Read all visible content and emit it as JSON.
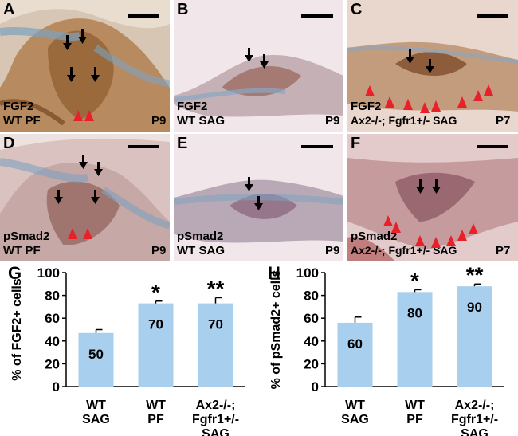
{
  "figure": {
    "panels": [
      {
        "id": "A",
        "stain": "FGF2",
        "genotype": "WT PF",
        "age": "P9"
      },
      {
        "id": "B",
        "stain": "FGF2",
        "genotype": "WT SAG",
        "age": "P9"
      },
      {
        "id": "C",
        "stain": "FGF2",
        "genotype": "Ax2-/-; Fgfr1+/- SAG",
        "age": "P7"
      },
      {
        "id": "D",
        "stain": "pSmad2",
        "genotype": "WT PF",
        "age": "P9"
      },
      {
        "id": "E",
        "stain": "pSmad2",
        "genotype": "WT SAG",
        "age": "P9"
      },
      {
        "id": "F",
        "stain": "pSmad2",
        "genotype": "Ax2-/-; Fgfr1+/- SAG",
        "age": "P7"
      }
    ],
    "colors": {
      "bar": "#a9cfee",
      "arrow_red": "#e8202a",
      "arrow_black": "#000000"
    }
  },
  "chart_data": [
    {
      "id": "G",
      "type": "bar",
      "ylabel": "% of FGF2+ cells",
      "ylim": [
        0,
        100
      ],
      "yticks": [
        0,
        20,
        40,
        60,
        80,
        100
      ],
      "categories": [
        [
          "WT",
          "SAG"
        ],
        [
          "WT",
          "PF"
        ],
        [
          "Ax2-/-;",
          "Fgfr1+/-",
          "SAG"
        ]
      ],
      "values": [
        47,
        73,
        73
      ],
      "errors": [
        3,
        2,
        5
      ],
      "bar_labels": [
        "50",
        "70",
        "70"
      ],
      "significance": [
        "",
        "*",
        "**"
      ]
    },
    {
      "id": "H",
      "type": "bar",
      "ylabel": "% of pSmad2+ cells",
      "ylim": [
        0,
        100
      ],
      "yticks": [
        0,
        20,
        40,
        60,
        80,
        100
      ],
      "categories": [
        [
          "WT",
          "SAG"
        ],
        [
          "WT",
          "PF"
        ],
        [
          "Ax2-/-;",
          "Fgfr1+/-",
          "SAG"
        ]
      ],
      "values": [
        56,
        83,
        88
      ],
      "errors": [
        5,
        2,
        2
      ],
      "bar_labels": [
        "60",
        "80",
        "90"
      ],
      "significance": [
        "",
        "*",
        "**"
      ]
    }
  ]
}
